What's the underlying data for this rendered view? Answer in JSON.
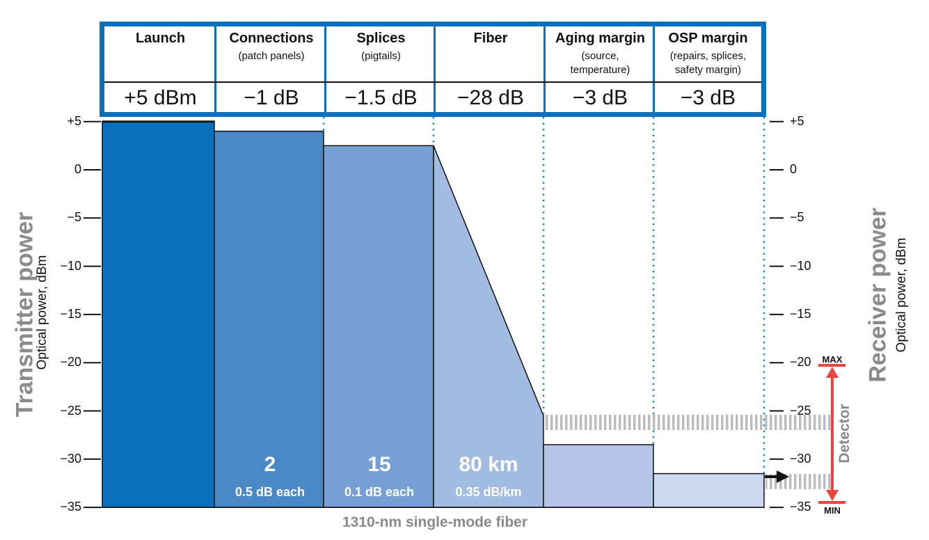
{
  "header": {
    "columns": [
      {
        "title": "Launch",
        "sub": "",
        "value": "+5 dBm"
      },
      {
        "title": "Connections",
        "sub": "(patch panels)",
        "value": "−1 dB"
      },
      {
        "title": "Splices",
        "sub": "(pigtails)",
        "value": "−1.5 dB"
      },
      {
        "title": "Fiber",
        "sub": "",
        "value": "−28 dB"
      },
      {
        "title": "Aging margin",
        "sub": "(source,\ntemperature)",
        "value": "−3 dB"
      },
      {
        "title": "OSP margin",
        "sub": "(repairs, splices,\nsafety margin)",
        "value": "−3 dB"
      }
    ]
  },
  "axes": {
    "left_title": "Transmitter power",
    "left_subtitle": "Optical power, dBm",
    "right_title": "Receiver power",
    "right_subtitle": "Optical power, dBm",
    "left_ticks": [
      "+5",
      "0",
      "−5",
      "−10",
      "−15",
      "−20",
      "−25",
      "−30",
      "−35"
    ],
    "right_ticks": [
      "+5",
      "0",
      "−5",
      "−10",
      "−15",
      "−20",
      "−25",
      "−30",
      "−35"
    ],
    "x_caption": "1310-nm single-mode fiber"
  },
  "stages": {
    "connections": {
      "count": "2",
      "detail": "0.5 dB each"
    },
    "splices": {
      "count": "15",
      "detail": "0.1 dB each"
    },
    "fiber": {
      "count": "80 km",
      "detail": "0.35 dB/km"
    }
  },
  "detector": {
    "label": "Detector",
    "max": "MAX",
    "min": "MIN"
  },
  "levels_dbm": [
    5,
    4,
    2.5,
    -25.5,
    -28.5,
    -31.5
  ],
  "colors": {
    "border": "#0a6fbd",
    "launch": "#0870bc",
    "connections": "#4a88c8",
    "splices": "#76a0d4",
    "fiber": "#a2bbe1",
    "aging": "#b5c6e8",
    "osp": "#cdd9f1",
    "detector_bar": "#e8453c",
    "dotted": "#1e88c8",
    "hatch": "#bdbdbd"
  }
}
